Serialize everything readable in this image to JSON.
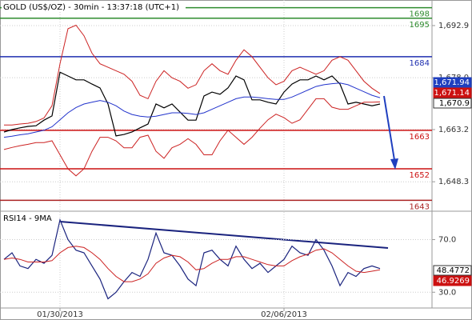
{
  "chart_data": [
    {
      "type": "line",
      "title": "GOLD (US$/OZ) - 30min - 13:37:18 (UTC+1)",
      "series": [
        {
          "color": "#000000",
          "values": [
            1662.5,
            1663.2,
            1663.7,
            1664.1,
            1664.3,
            1665.9,
            1667.1,
            1679.6,
            1678.5,
            1677.4,
            1677.4,
            1676.2,
            1675.1,
            1670.5,
            1661.4,
            1661.8,
            1662.5,
            1663.7,
            1664.8,
            1670.5,
            1669.4,
            1670.5,
            1668.2,
            1665.9,
            1665.9,
            1672.8,
            1673.9,
            1673.3,
            1675.1,
            1678.5,
            1677.4,
            1671.7,
            1671.7,
            1671.0,
            1670.5,
            1673.9,
            1676.2,
            1677.4,
            1677.4,
            1678.5,
            1677.4,
            1678.5,
            1676.2,
            1670.5,
            1671.0,
            1670.5,
            1670.0,
            1670.5
          ]
        },
        {
          "color": "#2233cc",
          "values": [
            1661.0,
            1661.3,
            1661.7,
            1662.0,
            1662.5,
            1663.0,
            1664.0,
            1666.0,
            1668.0,
            1669.5,
            1670.5,
            1671.0,
            1671.5,
            1671.0,
            1670.0,
            1668.5,
            1667.5,
            1667.0,
            1666.8,
            1667.0,
            1667.5,
            1668.0,
            1668.0,
            1667.8,
            1667.5,
            1668.0,
            1669.0,
            1670.0,
            1671.0,
            1672.0,
            1672.5,
            1672.5,
            1672.3,
            1672.0,
            1671.8,
            1671.8,
            1672.5,
            1673.5,
            1674.5,
            1675.5,
            1676.0,
            1676.3,
            1676.5,
            1676.0,
            1675.0,
            1674.0,
            1673.0,
            1672.3
          ]
        },
        {
          "color": "#cc2222",
          "values": [
            1664.5,
            1664.5,
            1664.8,
            1665.0,
            1665.5,
            1666.5,
            1670.0,
            1682.0,
            1692.0,
            1693.0,
            1690.0,
            1685.0,
            1682.0,
            1681.0,
            1680.0,
            1679.0,
            1677.0,
            1673.0,
            1672.0,
            1677.0,
            1680.0,
            1678.0,
            1677.0,
            1675.0,
            1676.0,
            1680.0,
            1682.0,
            1680.0,
            1679.0,
            1683.0,
            1686.0,
            1684.0,
            1681.0,
            1678.0,
            1676.0,
            1677.0,
            1680.0,
            1681.0,
            1680.0,
            1679.0,
            1680.0,
            1683.0,
            1684.0,
            1683.0,
            1680.0,
            1677.0,
            1675.0,
            1673.5
          ]
        },
        {
          "color": "#cc2222",
          "values": [
            1657.5,
            1658.1,
            1658.6,
            1659.0,
            1659.5,
            1659.5,
            1660.0,
            1656.0,
            1652.0,
            1650.0,
            1652.0,
            1657.0,
            1661.0,
            1661.0,
            1660.0,
            1658.0,
            1658.0,
            1661.0,
            1661.6,
            1657.0,
            1655.0,
            1658.0,
            1659.0,
            1660.6,
            1659.0,
            1656.0,
            1656.0,
            1660.0,
            1663.0,
            1661.0,
            1659.0,
            1661.0,
            1663.6,
            1666.0,
            1667.6,
            1666.6,
            1665.0,
            1666.0,
            1669.0,
            1672.0,
            1672.0,
            1669.6,
            1669.0,
            1669.0,
            1670.0,
            1671.0,
            1671.0,
            1671.1
          ]
        }
      ],
      "ylim": [
        1640.35,
        1700.2
      ],
      "yticks": [
        {
          "value": 1692.9,
          "label": "1,692.9"
        },
        {
          "value": 1678.0,
          "label": "1,678.0"
        },
        {
          "value": 1663.2,
          "label": "1,663.2"
        },
        {
          "value": 1648.3,
          "label": "1,648.3"
        }
      ],
      "levels": [
        {
          "value": 1698,
          "color": "#2e8b2e"
        },
        {
          "value": 1695,
          "color": "#2e8b2e"
        },
        {
          "value": 1684,
          "color": "#1f2fb0"
        },
        {
          "value": 1663,
          "color": "#cc1111"
        },
        {
          "value": 1652,
          "color": "#cc1111"
        },
        {
          "value": 1643,
          "color": "#aa2222"
        }
      ],
      "price_tags": [
        {
          "value": 1671.94,
          "label": "1,671.94",
          "color": "#1f3fbf"
        },
        {
          "value": 1671.14,
          "label": "1,671.14",
          "color": "#cc1111"
        },
        {
          "value": 1670.9,
          "label": "1,670.9",
          "color": "#ffffff"
        }
      ],
      "grid": true
    },
    {
      "type": "line",
      "title": "RSI14 - 9MA",
      "categories": [
        null,
        null,
        null,
        null,
        null,
        null,
        null,
        "01/30/2013",
        null,
        null,
        null,
        null,
        null,
        null,
        null,
        null,
        null,
        null,
        null,
        null,
        null,
        null,
        null,
        null,
        null,
        null,
        null,
        null,
        null,
        null,
        null,
        null,
        null,
        null,
        null,
        "02/06/2013",
        null,
        null,
        null,
        null,
        null,
        null,
        null,
        null,
        null,
        null,
        null,
        null
      ],
      "series": [
        {
          "color": "#1a237e",
          "values": [
            55,
            60,
            50,
            48,
            55,
            52,
            58,
            85,
            70,
            62,
            60,
            50,
            40,
            25,
            30,
            38,
            45,
            42,
            55,
            75,
            60,
            58,
            50,
            40,
            35,
            60,
            62,
            55,
            50,
            65,
            55,
            48,
            52,
            45,
            50,
            55,
            65,
            60,
            58,
            70,
            62,
            50,
            35,
            45,
            42,
            48,
            50,
            48
          ]
        },
        {
          "color": "#cc2222",
          "values": [
            55,
            56,
            55,
            53,
            53,
            53,
            54,
            60,
            64,
            65,
            64,
            60,
            55,
            48,
            42,
            38,
            38,
            40,
            44,
            52,
            56,
            58,
            57,
            53,
            47,
            48,
            52,
            55,
            55,
            57,
            57,
            55,
            53,
            51,
            50,
            50,
            54,
            57,
            59,
            62,
            63,
            60,
            55,
            50,
            46,
            45,
            46,
            47
          ]
        }
      ],
      "ylim": [
        18,
        91
      ],
      "yticks": [
        {
          "value": 70,
          "label": "70.0"
        },
        {
          "value": 30,
          "label": "30.0"
        }
      ],
      "price_tags": [
        {
          "value": 48.4772,
          "label": "48.4772",
          "color": "#ffffff"
        },
        {
          "value": 46.9269,
          "label": "46.9269",
          "color": "#cc1111"
        }
      ],
      "grid": true
    }
  ]
}
